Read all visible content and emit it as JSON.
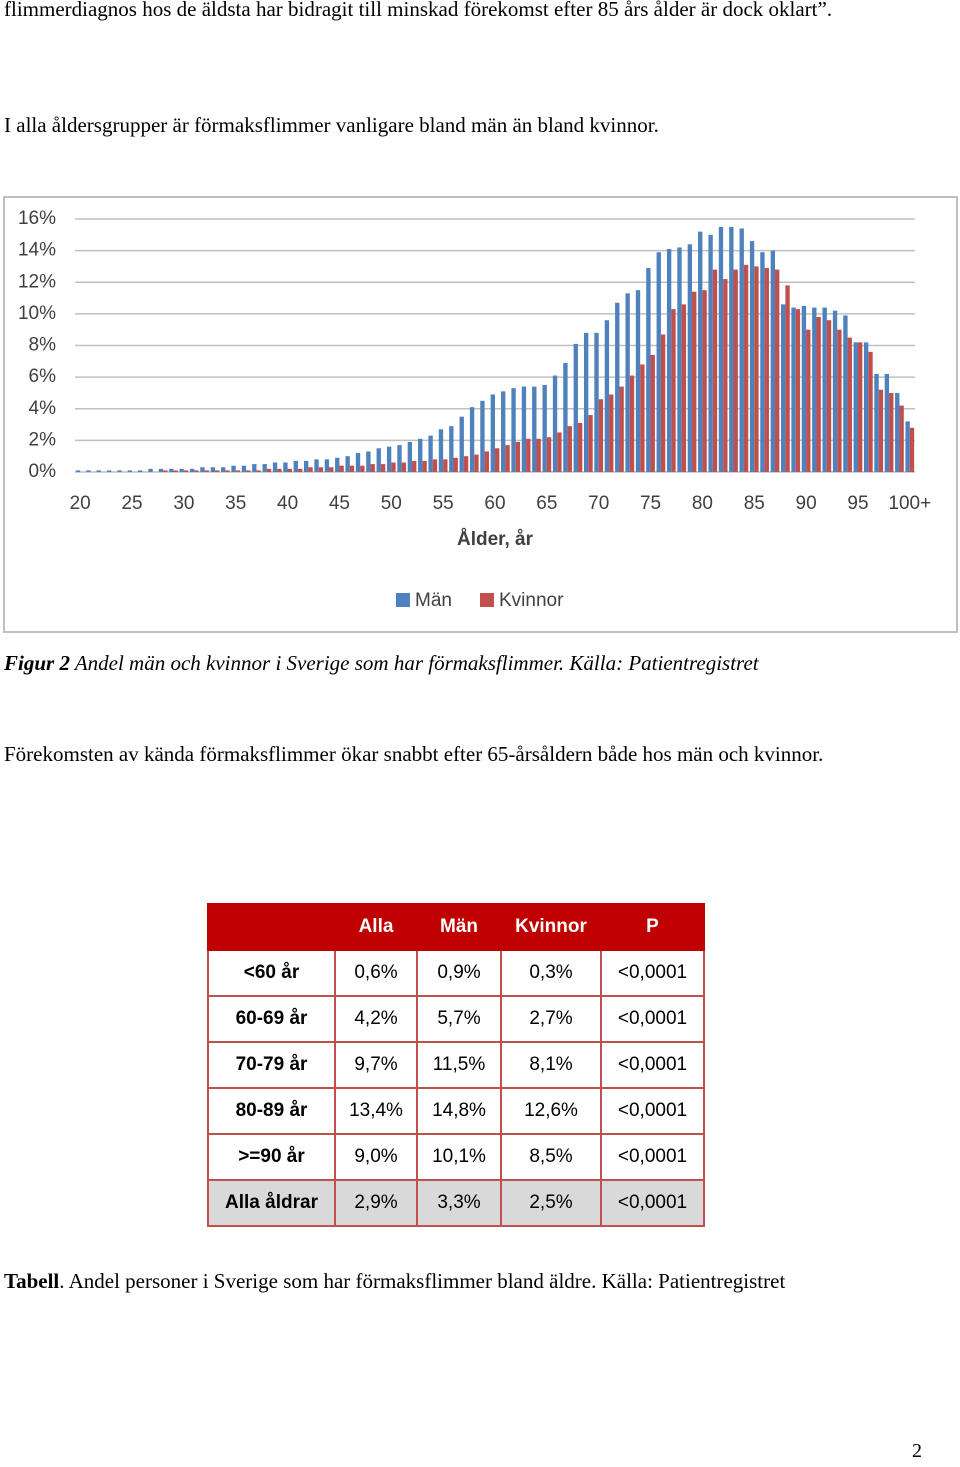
{
  "paragraphs": [
    "flimmerdiagnos hos de äldsta har bidragit till minskad förekomst efter 85 års ålder är dock oklart”.",
    "I alla åldersgrupper är förmaksflimmer vanligare bland män än bland kvinnor."
  ],
  "figure_caption": {
    "label": "Figur 2",
    "text": " Andel män och kvinnor i Sverige som har förmaksflimmer. Källa: Patientregistret"
  },
  "paragraph_after_figure": "Förekomsten av kända förmaksflimmer ökar snabbt efter 65-årsåldern både hos män och kvinnor.",
  "chart_data": {
    "type": "bar",
    "x_label": "Ålder, år",
    "categories": [
      "20",
      null,
      null,
      null,
      null,
      "25",
      null,
      null,
      null,
      null,
      "30",
      null,
      null,
      null,
      null,
      "35",
      null,
      null,
      null,
      null,
      "40",
      null,
      null,
      null,
      null,
      "45",
      null,
      null,
      null,
      null,
      "50",
      null,
      null,
      null,
      null,
      "55",
      null,
      null,
      null,
      null,
      "60",
      null,
      null,
      null,
      null,
      "65",
      null,
      null,
      null,
      null,
      "70",
      null,
      null,
      null,
      null,
      "75",
      null,
      null,
      null,
      null,
      "80",
      null,
      null,
      null,
      null,
      "85",
      null,
      null,
      null,
      null,
      "90",
      null,
      null,
      null,
      null,
      "95",
      null,
      null,
      null,
      null,
      "100+"
    ],
    "series": [
      {
        "name": "Män",
        "color": "#4f81bd",
        "values": [
          0.1,
          0.1,
          0.1,
          0.1,
          0.1,
          0.1,
          0.1,
          0.2,
          0.2,
          0.2,
          0.2,
          0.2,
          0.3,
          0.3,
          0.3,
          0.4,
          0.4,
          0.5,
          0.5,
          0.6,
          0.6,
          0.7,
          0.7,
          0.8,
          0.8,
          0.9,
          1.0,
          1.2,
          1.3,
          1.5,
          1.6,
          1.7,
          1.9,
          2.1,
          2.3,
          2.7,
          2.9,
          3.5,
          4.1,
          4.5,
          4.9,
          5.1,
          5.3,
          5.4,
          5.4,
          5.5,
          6.1,
          6.9,
          8.1,
          8.8,
          8.8,
          9.6,
          10.7,
          11.3,
          11.5,
          12.9,
          13.9,
          14.1,
          14.2,
          14.4,
          15.2,
          15.0,
          15.5,
          15.5,
          15.4,
          14.6,
          13.9,
          14.0,
          10.6,
          10.4,
          10.5,
          10.4,
          10.4,
          10.2,
          9.9,
          8.2,
          8.2,
          6.2,
          6.2,
          5.0,
          3.2
        ]
      },
      {
        "name": "Kvinnor",
        "color": "#c0504d",
        "values": [
          0.0,
          0.0,
          0.0,
          0.0,
          0.0,
          0.0,
          0.0,
          0.0,
          0.1,
          0.1,
          0.1,
          0.1,
          0.1,
          0.1,
          0.1,
          0.1,
          0.1,
          0.1,
          0.2,
          0.2,
          0.2,
          0.2,
          0.3,
          0.3,
          0.3,
          0.4,
          0.4,
          0.4,
          0.5,
          0.5,
          0.6,
          0.6,
          0.7,
          0.7,
          0.8,
          0.8,
          0.9,
          1.0,
          1.1,
          1.3,
          1.5,
          1.7,
          1.9,
          2.1,
          2.1,
          2.2,
          2.5,
          2.9,
          3.1,
          3.6,
          4.6,
          4.9,
          5.4,
          6.1,
          6.8,
          7.4,
          8.7,
          10.3,
          10.6,
          11.4,
          11.5,
          12.8,
          12.2,
          12.8,
          13.1,
          13.0,
          12.9,
          12.8,
          11.8,
          10.3,
          9.0,
          9.8,
          9.6,
          9.0,
          8.5,
          8.2,
          7.6,
          5.2,
          5.0,
          4.2,
          2.8
        ]
      }
    ],
    "ylim": [
      0,
      16
    ],
    "yticks": [
      {
        "value": 0,
        "label": "0%"
      },
      {
        "value": 2,
        "label": "2%"
      },
      {
        "value": 4,
        "label": "4%"
      },
      {
        "value": 6,
        "label": "6%"
      },
      {
        "value": 8,
        "label": "8%"
      },
      {
        "value": 10,
        "label": "10%"
      },
      {
        "value": 12,
        "label": "12%"
      },
      {
        "value": 14,
        "label": "14%"
      },
      {
        "value": 16,
        "label": "16%"
      }
    ],
    "grid": true,
    "legend": "bottom"
  },
  "table": {
    "header": [
      "",
      "Alla",
      "Män",
      "Kvinnor",
      "P"
    ],
    "rows": [
      [
        "<60  år",
        "0,6%",
        "0,9%",
        "0,3%",
        "<0,0001"
      ],
      [
        "60-69 år",
        "4,2%",
        "5,7%",
        "2,7%",
        "<0,0001"
      ],
      [
        "70-79 år",
        "9,7%",
        "11,5%",
        "8,1%",
        "<0,0001"
      ],
      [
        "80-89 år",
        "13,4%",
        "14,8%",
        "12,6%",
        "<0,0001"
      ],
      [
        ">=90 år",
        "9,0%",
        "10,1%",
        "8,5%",
        "<0,0001"
      ],
      [
        "Alla åldrar",
        "2,9%",
        "3,3%",
        "2,5%",
        "<0,0001"
      ]
    ]
  },
  "table_caption": {
    "label": "Tabell",
    "text": ". Andel personer i Sverige som har förmaksflimmer bland äldre. Källa: Patientregistret"
  },
  "page_number": "2"
}
